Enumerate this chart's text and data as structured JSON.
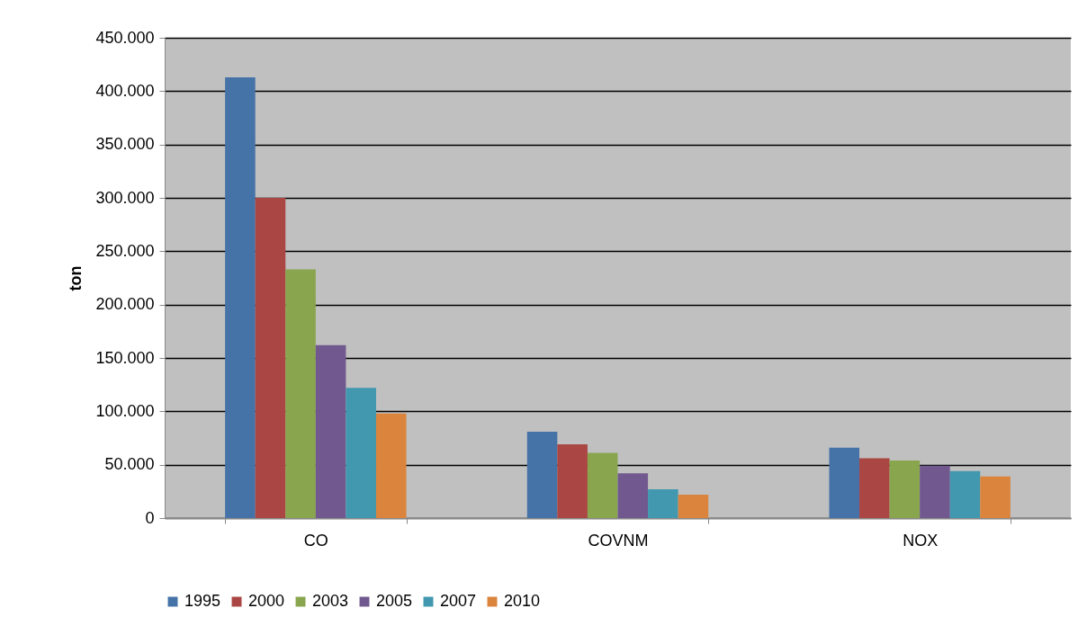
{
  "chart_data": {
    "type": "bar",
    "ylabel": "ton",
    "categories": [
      "CO",
      "COVNM",
      "NOX"
    ],
    "series": [
      {
        "name": "1995",
        "color": "#4572a7",
        "values": [
          413000,
          81000,
          66000
        ]
      },
      {
        "name": "2000",
        "color": "#aa4643",
        "values": [
          300000,
          69000,
          56000
        ]
      },
      {
        "name": "2003",
        "color": "#89a54e",
        "values": [
          233000,
          61000,
          54000
        ]
      },
      {
        "name": "2005",
        "color": "#71588f",
        "values": [
          162000,
          42000,
          49000
        ]
      },
      {
        "name": "2007",
        "color": "#4198af",
        "values": [
          122000,
          27000,
          44000
        ]
      },
      {
        "name": "2010",
        "color": "#db843d",
        "values": [
          98000,
          22000,
          39000
        ]
      }
    ],
    "ylim": [
      0,
      450000
    ],
    "yticks": [
      0,
      {
        "value": 50000,
        "label": "50.000"
      },
      {
        "value": 100000,
        "label": "100.000"
      },
      {
        "value": 150000,
        "label": "150.000"
      },
      {
        "value": 200000,
        "label": "200.000"
      },
      {
        "value": 250000,
        "label": "250.000"
      },
      {
        "value": 300000,
        "label": "300.000"
      },
      {
        "value": 350000,
        "label": "350.000"
      },
      {
        "value": 400000,
        "label": "400.000"
      },
      {
        "value": 450000,
        "label": "450.000"
      }
    ],
    "grid": "y",
    "legend": "bottom"
  }
}
